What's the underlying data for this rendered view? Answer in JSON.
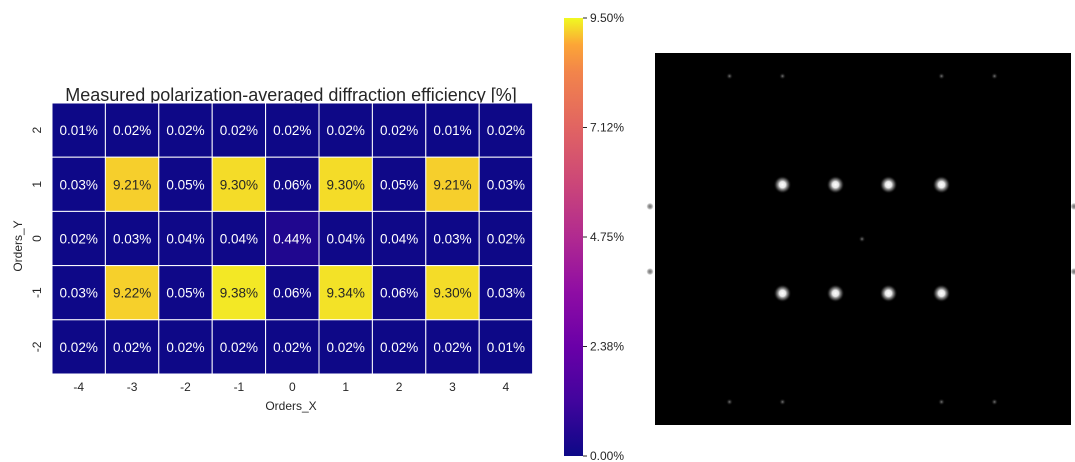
{
  "chart_data": [
    {
      "type": "heatmap",
      "title": "Measured polarization-averaged diffraction efficiency [%]",
      "xlabel": "Orders_X",
      "ylabel": "Orders_Y",
      "x_ticks": [
        "-4",
        "-3",
        "-2",
        "-1",
        "0",
        "1",
        "2",
        "3",
        "4"
      ],
      "y_ticks": [
        "2",
        "1",
        "0",
        "-1",
        "-2"
      ],
      "cells": [
        [
          "0.01%",
          "0.02%",
          "0.02%",
          "0.02%",
          "0.02%",
          "0.02%",
          "0.02%",
          "0.01%",
          "0.02%"
        ],
        [
          "0.03%",
          "9.21%",
          "0.05%",
          "9.30%",
          "0.06%",
          "9.30%",
          "0.05%",
          "9.21%",
          "0.03%"
        ],
        [
          "0.02%",
          "0.03%",
          "0.04%",
          "0.04%",
          "0.44%",
          "0.04%",
          "0.04%",
          "0.03%",
          "0.02%"
        ],
        [
          "0.03%",
          "9.22%",
          "0.05%",
          "9.38%",
          "0.06%",
          "9.34%",
          "0.06%",
          "9.30%",
          "0.03%"
        ],
        [
          "0.02%",
          "0.02%",
          "0.02%",
          "0.02%",
          "0.02%",
          "0.02%",
          "0.02%",
          "0.02%",
          "0.01%"
        ]
      ],
      "values": [
        [
          0.01,
          0.02,
          0.02,
          0.02,
          0.02,
          0.02,
          0.02,
          0.01,
          0.02
        ],
        [
          0.03,
          9.21,
          0.05,
          9.3,
          0.06,
          9.3,
          0.05,
          9.21,
          0.03
        ],
        [
          0.02,
          0.03,
          0.04,
          0.04,
          0.44,
          0.04,
          0.04,
          0.03,
          0.02
        ],
        [
          0.03,
          9.22,
          0.05,
          9.38,
          0.06,
          9.34,
          0.06,
          9.3,
          0.03
        ],
        [
          0.02,
          0.02,
          0.02,
          0.02,
          0.02,
          0.02,
          0.02,
          0.02,
          0.01
        ]
      ],
      "vmin": 0,
      "vmax": 9.5,
      "colormap": "plasma",
      "colorbar_ticks": [
        "0.00%",
        "2.38%",
        "4.75%",
        "7.12%",
        "9.50%"
      ],
      "colorbar_tick_values": [
        0,
        2.375,
        4.75,
        7.125,
        9.5
      ],
      "grid": true
    }
  ],
  "camera_image": {
    "background": "#000000",
    "main_spots": [
      {
        "ix": -3,
        "iy": 1
      },
      {
        "ix": -1,
        "iy": 1
      },
      {
        "ix": 1,
        "iy": 1
      },
      {
        "ix": 3,
        "iy": 1
      },
      {
        "ix": -3,
        "iy": -1
      },
      {
        "ix": -1,
        "iy": -1
      },
      {
        "ix": 1,
        "iy": -1
      },
      {
        "ix": 3,
        "iy": -1
      }
    ],
    "faint_spots": [
      {
        "ix": 0,
        "iy": 0
      },
      {
        "ix": -8,
        "iy": 1
      },
      {
        "ix": 8,
        "iy": 1
      },
      {
        "ix": -8,
        "iy": -1
      },
      {
        "ix": 8,
        "iy": -1
      },
      {
        "ix": -5,
        "iy": 5
      },
      {
        "ix": -3,
        "iy": 5
      },
      {
        "ix": 3,
        "iy": 5
      },
      {
        "ix": 5,
        "iy": 5
      },
      {
        "ix": -5,
        "iy": -5
      },
      {
        "ix": -3,
        "iy": -5
      },
      {
        "ix": 3,
        "iy": -5
      },
      {
        "ix": 5,
        "iy": -5
      }
    ]
  },
  "colors": {
    "cell_border": "#ffffff",
    "text_dark": "#262626",
    "text_light": "#ffffff",
    "axis_text": "#262626"
  }
}
